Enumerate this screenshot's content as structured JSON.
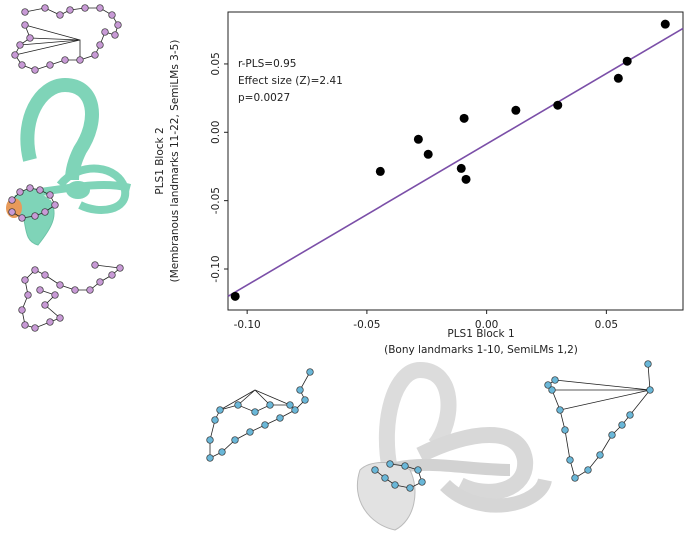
{
  "chart_data": {
    "type": "scatter",
    "x": [
      -0.105,
      -0.0444,
      -0.0285,
      -0.0244,
      -0.0106,
      -0.0094,
      -0.0086,
      0.0122,
      0.0297,
      0.055,
      0.0587,
      0.0746
    ],
    "values": [
      -0.12,
      -0.0286,
      -0.0051,
      -0.0161,
      -0.0264,
      0.0102,
      -0.0344,
      0.0161,
      0.0198,
      0.0395,
      0.052,
      0.0791
    ],
    "color": "#000000",
    "fit_line": {
      "x": [
        -0.108,
        0.082
      ],
      "y": [
        -0.12,
        0.076
      ],
      "color": "#7b4fa8"
    },
    "xlim": [
      -0.108,
      0.082
    ],
    "ylim": [
      -0.13,
      0.088
    ],
    "xticks": [
      {
        "value": -0.1,
        "label": "-0.10"
      },
      {
        "value": -0.05,
        "label": "-0.05"
      },
      {
        "value": 0,
        "label": "0.00"
      },
      {
        "value": 0.05,
        "label": "0.05"
      }
    ],
    "yticks": [
      {
        "value": -0.1,
        "label": "-0.10"
      },
      {
        "value": -0.05,
        "label": "-0.05"
      },
      {
        "value": 0,
        "label": "0.00"
      },
      {
        "value": 0.05,
        "label": "0.05"
      }
    ],
    "x_label": [
      "PLS1 Block 1",
      "(Bony landmarks 1-10, SemiLMs 1,2)"
    ],
    "y_label": [
      "PLS1 Block 2",
      "(Membranous landmarks 11-22, SemiLMs 3-5)"
    ],
    "annotations": [
      "r-PLS=0.95",
      "Effect size (Z)=2.41",
      "p=0.0027"
    ]
  }
}
